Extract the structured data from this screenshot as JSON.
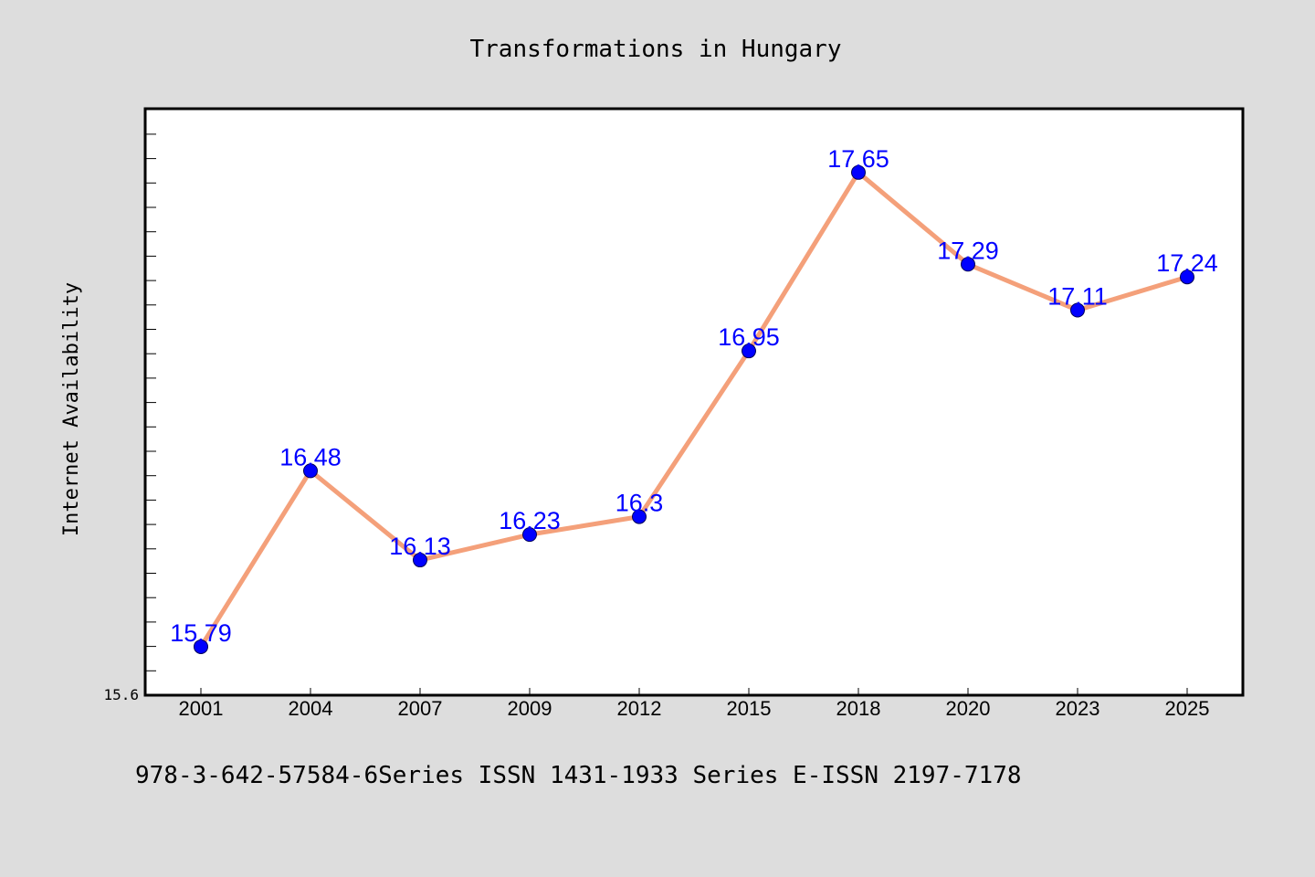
{
  "chart_data": {
    "type": "line",
    "title": "Transformations in Hungary",
    "xlabel": "",
    "ylabel": "Internet Availability",
    "categories": [
      "2001",
      "2004",
      "2007",
      "2009",
      "2012",
      "2015",
      "2018",
      "2020",
      "2023",
      "2025"
    ],
    "series": [
      {
        "values": [
          15.79,
          16.48,
          16.13,
          16.23,
          16.3,
          16.95,
          17.65,
          17.29,
          17.11,
          17.24
        ],
        "line_color": "#f4a07a",
        "marker_color": "#0000ff"
      }
    ],
    "data_labels": [
      "15.79",
      "16.48",
      "16.13",
      "16.23",
      "16.3",
      "16.95",
      "17.65",
      "17.29",
      "17.11",
      "17.24"
    ],
    "ylim": [
      15.6,
      17.9
    ],
    "ytick_label": "15.6",
    "grid": false,
    "legend": "none"
  },
  "footer": {
    "text": "978-3-642-57584-6Series ISSN 1431-1933 Series E-ISSN 2197-7178"
  },
  "colors": {
    "background": "#dddddd",
    "plot_background": "#ffffff",
    "line": "#f4a07a",
    "marker": "#0000ff",
    "data_label": "#0000ff"
  }
}
